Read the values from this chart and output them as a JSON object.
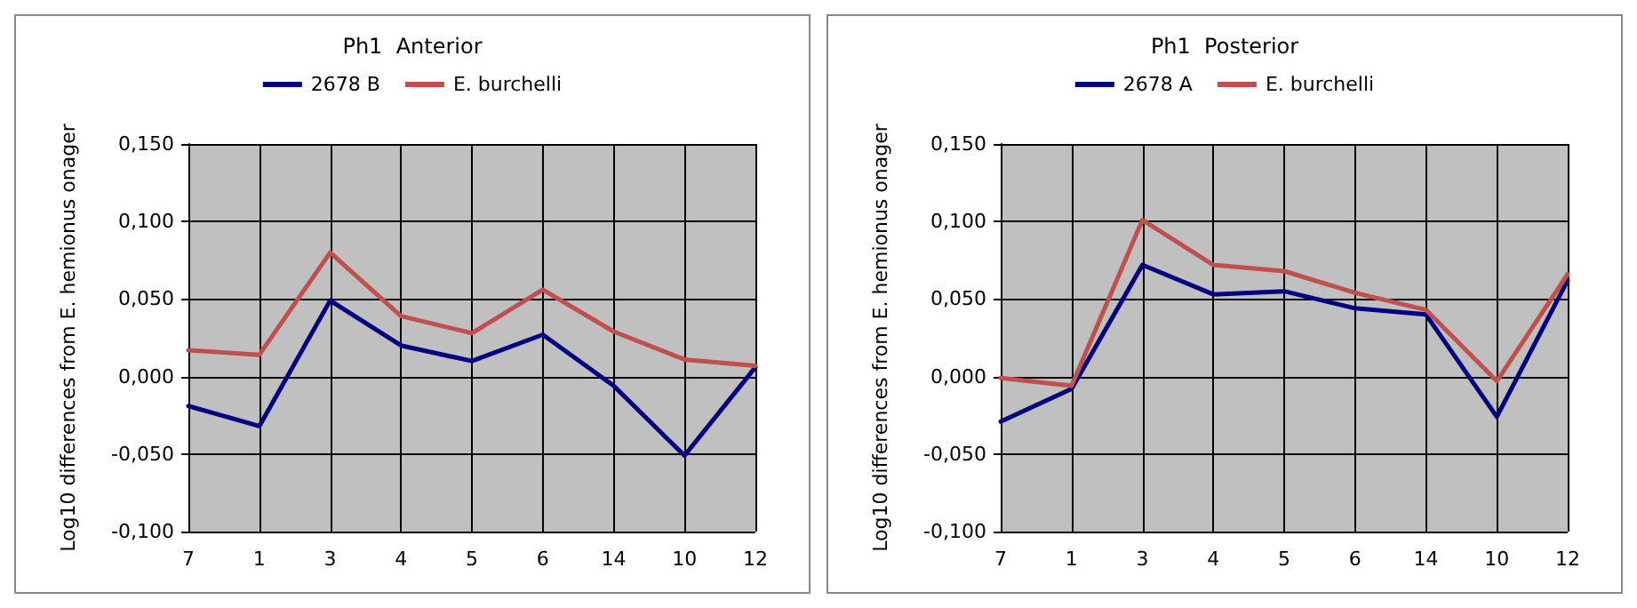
{
  "chart_data": [
    {
      "type": "line",
      "title": "Ph1  Anterior",
      "ylabel": "Log10 differences from E. hemionus onager",
      "categories": [
        "7",
        "1",
        "3",
        "4",
        "5",
        "6",
        "14",
        "10",
        "12"
      ],
      "series": [
        {
          "name": "2678 B",
          "color": "#000080",
          "values": [
            -0.019,
            -0.032,
            0.049,
            0.02,
            0.01,
            0.027,
            -0.006,
            -0.051,
            0.006
          ]
        },
        {
          "name": "E. burchelli",
          "color": "#c0504d",
          "values": [
            0.017,
            0.014,
            0.08,
            0.039,
            0.028,
            0.056,
            0.029,
            0.011,
            0.007
          ]
        }
      ],
      "ylim": [
        -0.1,
        0.15
      ],
      "yticks": [
        {
          "value": -0.1,
          "label": "-0,100"
        },
        {
          "value": -0.05,
          "label": "-0,050"
        },
        {
          "value": 0,
          "label": "0,000"
        },
        {
          "value": 0.05,
          "label": "0,050"
        },
        {
          "value": 0.1,
          "label": "0,100"
        },
        {
          "value": 0.15,
          "label": "0,150"
        }
      ],
      "grid": true,
      "legend": "top",
      "marker": "none",
      "line_style": "solid"
    },
    {
      "type": "line",
      "title": "Ph1  Posterior",
      "ylabel": "Log10 differences from E. hemionus onager",
      "categories": [
        "7",
        "1",
        "3",
        "4",
        "5",
        "6",
        "14",
        "10",
        "12"
      ],
      "series": [
        {
          "name": "2678 A",
          "color": "#000080",
          "values": [
            -0.029,
            -0.008,
            0.072,
            0.053,
            0.055,
            0.044,
            0.04,
            -0.026,
            0.062
          ]
        },
        {
          "name": "E. burchelli",
          "color": "#c0504d",
          "values": [
            -0.001,
            -0.006,
            0.101,
            0.072,
            0.068,
            0.054,
            0.043,
            -0.003,
            0.066
          ]
        }
      ],
      "ylim": [
        -0.1,
        0.15
      ],
      "yticks": [
        {
          "value": -0.1,
          "label": "-0,100"
        },
        {
          "value": -0.05,
          "label": "-0,050"
        },
        {
          "value": 0,
          "label": "0,000"
        },
        {
          "value": 0.05,
          "label": "0,050"
        },
        {
          "value": 0.1,
          "label": "0,100"
        },
        {
          "value": 0.15,
          "label": "0,150"
        }
      ],
      "grid": true,
      "legend": "top",
      "marker": "none",
      "line_style": "solid"
    }
  ]
}
